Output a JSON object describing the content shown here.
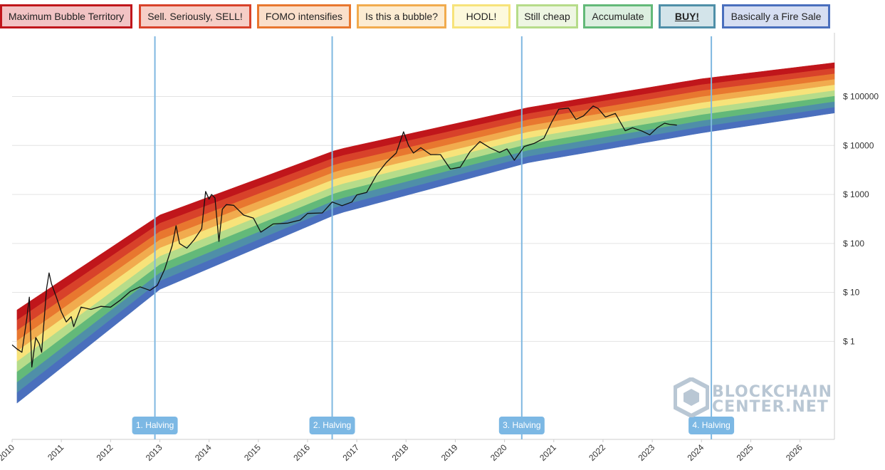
{
  "legend": [
    {
      "label": "Maximum Bubble Territory",
      "border": "#c0161b",
      "bg": "#f2c3c4"
    },
    {
      "label": "Sell. Seriously, SELL!",
      "border": "#d8422a",
      "bg": "#f6cec6"
    },
    {
      "label": "FOMO intensifies",
      "border": "#e8772f",
      "bg": "#fadfca"
    },
    {
      "label": "Is this a bubble?",
      "border": "#f1ab4e",
      "bg": "#fcecd2"
    },
    {
      "label": "HODL!",
      "border": "#f7e37a",
      "bg": "#fdf9dc"
    },
    {
      "label": "Still cheap",
      "border": "#b6dc8a",
      "bg": "#eef6e2"
    },
    {
      "label": "Accumulate",
      "border": "#63b979",
      "bg": "#dcefe0"
    },
    {
      "label": "BUY!",
      "border": "#4f8fa8",
      "bg": "#d3e4ea"
    },
    {
      "label": "Basically a Fire Sale",
      "border": "#4a6fbd",
      "bg": "#d6def2"
    }
  ],
  "chart_data": {
    "type": "area",
    "y_scale": "log",
    "ylim": [
      0.01,
      2000000
    ],
    "xlim": [
      2010.0,
      2026.7
    ],
    "y_ticks": [
      {
        "value": 1,
        "label": "$ 1"
      },
      {
        "value": 10,
        "label": "$ 10"
      },
      {
        "value": 100,
        "label": "$ 100"
      },
      {
        "value": 1000,
        "label": "$ 1000"
      },
      {
        "value": 10000,
        "label": "$ 10000"
      },
      {
        "value": 100000,
        "label": "$ 100000"
      }
    ],
    "x_ticks": [
      {
        "value": 2010,
        "label": "2010"
      },
      {
        "value": 2011,
        "label": "2011"
      },
      {
        "value": 2012,
        "label": "2012"
      },
      {
        "value": 2013,
        "label": "2013"
      },
      {
        "value": 2014,
        "label": "2014"
      },
      {
        "value": 2015,
        "label": "2015"
      },
      {
        "value": 2016,
        "label": "2016"
      },
      {
        "value": 2017,
        "label": "2017"
      },
      {
        "value": 2018,
        "label": "2018"
      },
      {
        "value": 2019,
        "label": "2019"
      },
      {
        "value": 2020,
        "label": "2020"
      },
      {
        "value": 2021,
        "label": "2021"
      },
      {
        "value": 2022,
        "label": "2022"
      },
      {
        "value": 2023,
        "label": "2023"
      },
      {
        "value": 2024,
        "label": "2024"
      },
      {
        "value": 2025,
        "label": "2025"
      },
      {
        "value": 2026,
        "label": "2026"
      }
    ],
    "bands": [
      {
        "name": "Maximum Bubble Territory",
        "color": "#c0161b"
      },
      {
        "name": "Sell. Seriously, SELL!",
        "color": "#d8422a"
      },
      {
        "name": "FOMO intensifies",
        "color": "#e8772f"
      },
      {
        "name": "Is this a bubble?",
        "color": "#f1ab4e"
      },
      {
        "name": "HODL!",
        "color": "#f7e37a"
      },
      {
        "name": "Still cheap",
        "color": "#b6dc8a"
      },
      {
        "name": "Accumulate",
        "color": "#63b979"
      },
      {
        "name": "BUY!",
        "color": "#4f8fa8"
      },
      {
        "name": "Basically a Fire Sale",
        "color": "#4a6fbd"
      }
    ],
    "band_edges": [
      [
        2010.1,
        4.4,
        0.055
      ],
      [
        2013.0,
        380,
        11.5
      ],
      [
        2016.6,
        8200,
        400
      ],
      [
        2020.5,
        60000,
        4500
      ],
      [
        2024.0,
        230000,
        18000
      ],
      [
        2026.7,
        490000,
        46000
      ]
    ],
    "halvings": [
      {
        "x": 2012.9,
        "label": "1. Halving"
      },
      {
        "x": 2016.5,
        "label": "2. Halving"
      },
      {
        "x": 2020.35,
        "label": "3. Halving"
      },
      {
        "x": 2024.2,
        "label": "4. Halving"
      }
    ],
    "price_series": [
      [
        2010.0,
        0.85
      ],
      [
        2010.1,
        0.7
      ],
      [
        2010.2,
        0.6
      ],
      [
        2010.3,
        3.0
      ],
      [
        2010.35,
        8.0
      ],
      [
        2010.4,
        0.3
      ],
      [
        2010.48,
        1.2
      ],
      [
        2010.55,
        0.9
      ],
      [
        2010.6,
        0.6
      ],
      [
        2010.7,
        12.0
      ],
      [
        2010.75,
        25.0
      ],
      [
        2010.8,
        15.0
      ],
      [
        2010.9,
        8.0
      ],
      [
        2011.0,
        4.0
      ],
      [
        2011.1,
        2.5
      ],
      [
        2011.2,
        3.2
      ],
      [
        2011.25,
        2.0
      ],
      [
        2011.4,
        5.0
      ],
      [
        2011.6,
        4.5
      ],
      [
        2011.8,
        5.2
      ],
      [
        2012.0,
        5.0
      ],
      [
        2012.2,
        7.0
      ],
      [
        2012.4,
        10.5
      ],
      [
        2012.6,
        13.0
      ],
      [
        2012.8,
        11.0
      ],
      [
        2012.95,
        14.0
      ],
      [
        2013.1,
        30.0
      ],
      [
        2013.25,
        90.0
      ],
      [
        2013.33,
        230.0
      ],
      [
        2013.4,
        100.0
      ],
      [
        2013.55,
        80.0
      ],
      [
        2013.7,
        120.0
      ],
      [
        2013.85,
        200.0
      ],
      [
        2013.93,
        1150.0
      ],
      [
        2014.0,
        800.0
      ],
      [
        2014.05,
        1000.0
      ],
      [
        2014.12,
        850.0
      ],
      [
        2014.2,
        110.0
      ],
      [
        2014.27,
        500.0
      ],
      [
        2014.35,
        620.0
      ],
      [
        2014.5,
        600.0
      ],
      [
        2014.7,
        380.0
      ],
      [
        2014.9,
        330.0
      ],
      [
        2015.05,
        170.0
      ],
      [
        2015.3,
        250.0
      ],
      [
        2015.6,
        260.0
      ],
      [
        2015.85,
        300.0
      ],
      [
        2016.0,
        410.0
      ],
      [
        2016.3,
        420.0
      ],
      [
        2016.5,
        700.0
      ],
      [
        2016.7,
        590.0
      ],
      [
        2016.9,
        700.0
      ],
      [
        2017.0,
        980.0
      ],
      [
        2017.2,
        1100.0
      ],
      [
        2017.4,
        2500.0
      ],
      [
        2017.6,
        4500.0
      ],
      [
        2017.8,
        7000.0
      ],
      [
        2017.95,
        19000.0
      ],
      [
        2018.05,
        10000.0
      ],
      [
        2018.15,
        7000.0
      ],
      [
        2018.3,
        9000.0
      ],
      [
        2018.5,
        6500.0
      ],
      [
        2018.7,
        6500.0
      ],
      [
        2018.9,
        3300.0
      ],
      [
        2019.1,
        3600.0
      ],
      [
        2019.3,
        7500.0
      ],
      [
        2019.5,
        12000.0
      ],
      [
        2019.7,
        9000.0
      ],
      [
        2019.9,
        7200.0
      ],
      [
        2020.05,
        8500.0
      ],
      [
        2020.2,
        5000.0
      ],
      [
        2020.4,
        9500.0
      ],
      [
        2020.6,
        11000.0
      ],
      [
        2020.8,
        14000.0
      ],
      [
        2020.95,
        29000.0
      ],
      [
        2021.1,
        55000.0
      ],
      [
        2021.3,
        58000.0
      ],
      [
        2021.45,
        34000.0
      ],
      [
        2021.6,
        40000.0
      ],
      [
        2021.8,
        64000.0
      ],
      [
        2021.9,
        57000.0
      ],
      [
        2022.05,
        38000.0
      ],
      [
        2022.25,
        45000.0
      ],
      [
        2022.45,
        20000.0
      ],
      [
        2022.6,
        23000.0
      ],
      [
        2022.8,
        19500.0
      ],
      [
        2022.95,
        16500.0
      ],
      [
        2023.1,
        23000.0
      ],
      [
        2023.25,
        28500.0
      ],
      [
        2023.35,
        27000.0
      ],
      [
        2023.5,
        26000.0
      ]
    ]
  },
  "watermark": {
    "line1": "BLOCKCHAIN",
    "line2": "CENTER.NET"
  }
}
